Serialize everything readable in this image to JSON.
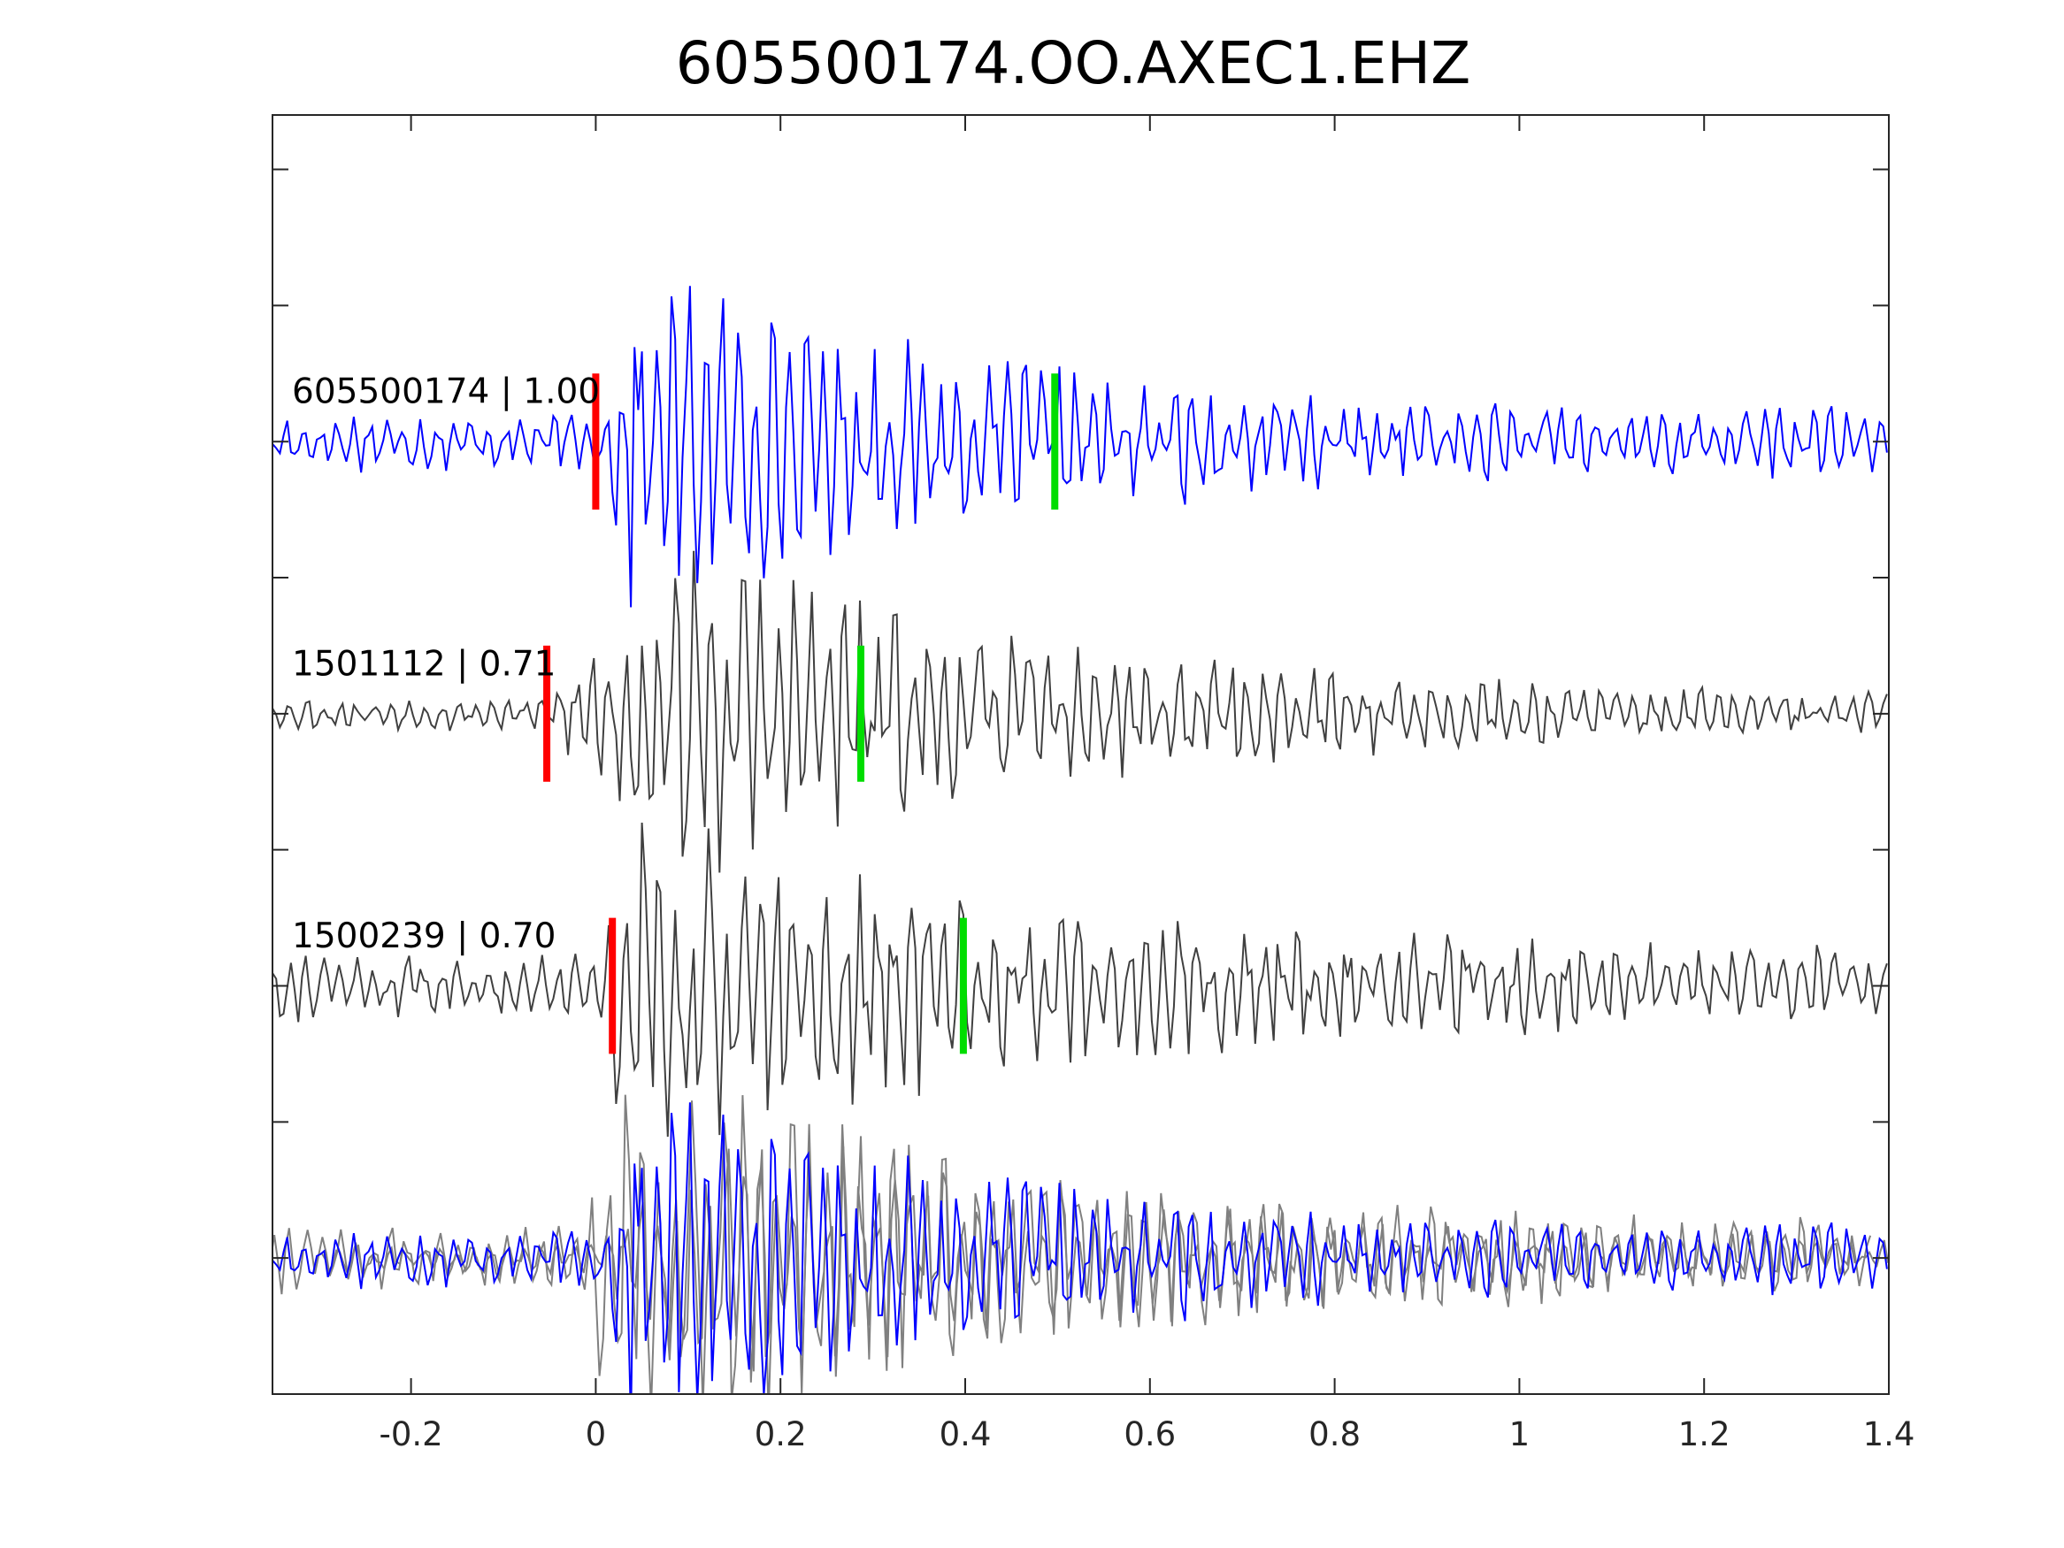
{
  "chart_data": {
    "type": "line",
    "title": "605500174.OO.AXEC1.EHZ",
    "xlabel": "",
    "ylabel": "",
    "xlim": [
      -0.35,
      1.4
    ],
    "ylim": [
      -0.5,
      4.2
    ],
    "x_ticks": [
      -0.2,
      0,
      0.2,
      0.4,
      0.6,
      0.8,
      1,
      1.2,
      1.4
    ],
    "x_tick_labels": [
      "-0.2",
      "0",
      "0.2",
      "0.4",
      "0.6",
      "0.8",
      "1",
      "1.2",
      "1.4"
    ],
    "y_ticks": [
      0,
      0.5,
      1,
      1.5,
      2,
      2.5,
      3,
      3.5,
      4
    ],
    "grid": false,
    "series": [
      {
        "name": "605500174 | 1.00",
        "label": "605500174 | 1.00",
        "offset": 3,
        "color": "#0000ff",
        "seed": 17,
        "amp_noise": 0.085,
        "amp_event": 0.45,
        "p_pick": 0.0,
        "s_pick": 0.497,
        "event_start": 0.005,
        "event_peak": 0.03
      },
      {
        "name": "1501112 | 0.71",
        "label": "1501112 | 0.71",
        "offset": 2,
        "color": "#404040",
        "seed": 53,
        "amp_noise": 0.05,
        "amp_event": 0.5,
        "p_pick": -0.053,
        "s_pick": 0.287,
        "event_start": -0.06,
        "event_peak": 0.09
      },
      {
        "name": "1500239 | 0.70",
        "label": "1500239 | 0.70",
        "offset": 1,
        "color": "#404040",
        "seed": 91,
        "amp_noise": 0.1,
        "amp_event": 0.5,
        "p_pick": 0.018,
        "s_pick": 0.398,
        "event_start": 0.01,
        "event_peak": 0.035
      }
    ],
    "overlay": {
      "offset": 0,
      "primary_color": "#0000ff",
      "secondary_color": "#808080"
    },
    "pick_colors": {
      "p": "#ff0000",
      "s": "#00dd00"
    }
  }
}
